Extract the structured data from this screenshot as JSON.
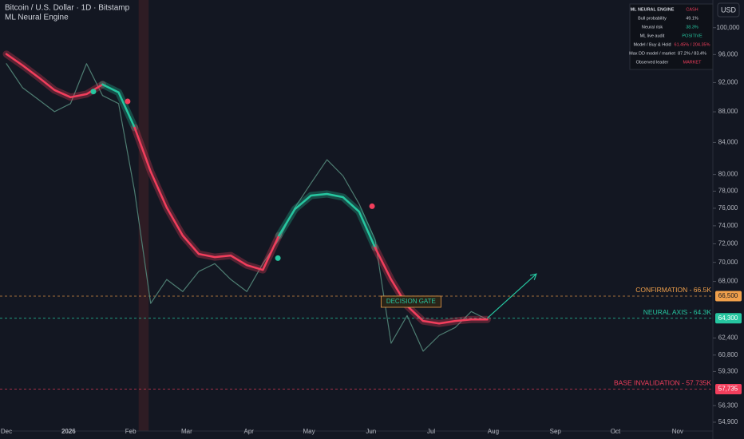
{
  "chart_data": {
    "type": "line",
    "title": "Bitcoin / U.S. Dollar · 1D · Bitstamp",
    "log_scale": true,
    "grid": false,
    "xlim": [
      -3.2,
      352.6
    ],
    "ylim": [
      54170,
      104300
    ],
    "xticks": [
      {
        "value": 0,
        "label": "Dec"
      },
      {
        "value": 31,
        "label": "2026"
      },
      {
        "value": 62,
        "label": "Feb"
      },
      {
        "value": 90,
        "label": "Mar"
      },
      {
        "value": 121,
        "label": "Apr"
      },
      {
        "value": 151,
        "label": "May"
      },
      {
        "value": 182,
        "label": "Jun"
      },
      {
        "value": 212,
        "label": "Jul"
      },
      {
        "value": 243,
        "label": "Aug"
      },
      {
        "value": 274,
        "label": "Sep"
      },
      {
        "value": 304,
        "label": "Oct"
      },
      {
        "value": 335,
        "label": "Nov"
      }
    ],
    "yticks": [
      {
        "value": 100000,
        "label": "100,000"
      },
      {
        "value": 96000,
        "label": "96,000"
      },
      {
        "value": 92000,
        "label": "92,000"
      },
      {
        "value": 88000,
        "label": "88,000"
      },
      {
        "value": 84000,
        "label": "84,000"
      },
      {
        "value": 80000,
        "label": "80,000"
      },
      {
        "value": 78000,
        "label": "78,000"
      },
      {
        "value": 76000,
        "label": "76,000"
      },
      {
        "value": 74000,
        "label": "74,000"
      },
      {
        "value": 72000,
        "label": "72,000"
      },
      {
        "value": 70000,
        "label": "70,000"
      },
      {
        "value": 68000,
        "label": "68,000"
      },
      {
        "value": 62400,
        "label": "62,400"
      },
      {
        "value": 60800,
        "label": "60,800"
      },
      {
        "value": 59300,
        "label": "59,300"
      },
      {
        "value": 56300,
        "label": "56,300"
      },
      {
        "value": 54900,
        "label": "54,900"
      }
    ],
    "x": [
      0,
      8,
      16,
      24,
      32,
      40,
      48,
      56,
      64,
      72,
      80,
      88,
      96,
      104,
      112,
      120,
      128,
      136,
      144,
      152,
      160,
      168,
      176,
      184,
      192,
      200,
      208,
      216,
      224,
      232,
      240
    ],
    "series": [
      {
        "name": "ML Neural Engine",
        "color": "#f23e5c",
        "values": [
          96070,
          94450,
          92740,
          90960,
          89970,
          90400,
          91730,
          90630,
          85910,
          80360,
          76080,
          72910,
          70900,
          70560,
          70730,
          69700,
          69200,
          72910,
          75900,
          77480,
          77670,
          77290,
          75620,
          71590,
          68200,
          65520,
          64030,
          63790,
          64030,
          64180,
          64180
        ]
      },
      {
        "color": "#4e7d72",
        "values": [
          94680,
          91300,
          89650,
          88020,
          89100,
          94680,
          90200,
          89100,
          77960,
          65760,
          68200,
          66960,
          69040,
          69860,
          68200,
          66960,
          69860,
          72470,
          76080,
          78930,
          81820,
          79830,
          76520,
          72470,
          61900,
          64560,
          61160,
          62640,
          63400,
          64960,
          64180
        ]
      }
    ],
    "signals": [
      {
        "x": 43.4,
        "y": 90750,
        "color": "#26c6a0"
      },
      {
        "x": 60.5,
        "y": 89400,
        "color": "#f23e5c"
      },
      {
        "x": 135.5,
        "y": 70450,
        "color": "#26c6a0"
      },
      {
        "x": 182.5,
        "y": 76230,
        "color": "#f23e5c"
      }
    ],
    "levels": [
      {
        "label": "CONFIRMATION - 66.5K",
        "value": 66500,
        "tag": "66,500",
        "color": "#f0a04b"
      },
      {
        "label": "NEURAL AXIS - 64.3K",
        "value": 64300,
        "tag": "64,300",
        "color": "#26c6a0"
      },
      {
        "label": "BASE INVALIDATION - 57.735K",
        "value": 57735,
        "tag": "57,735",
        "color": "#f23e5c"
      }
    ],
    "annotation": {
      "text": "DECISION GATE",
      "x": 187,
      "y": 66500,
      "color": "#f0a04b"
    },
    "arrow": {
      "x": [
        240,
        264.5
      ],
      "y": [
        64300,
        68780
      ],
      "color": "#26c6a0"
    },
    "highlight_x": [
      66,
      71
    ]
  },
  "currency": "USD",
  "panel": {
    "rows": [
      [
        "ML NEURAL ENGINE",
        "CASH"
      ],
      [
        "Bull probability",
        "49.1%"
      ],
      [
        "Neural risk",
        "38.3%"
      ],
      [
        "ML live audit",
        "POSITIVE"
      ],
      [
        "Model / Buy & Hold",
        "61.45% / 204.35%"
      ],
      [
        "Max DD model / market",
        "87.2% / 83.4%"
      ],
      [
        "Observed leader",
        "MARKET"
      ]
    ]
  }
}
